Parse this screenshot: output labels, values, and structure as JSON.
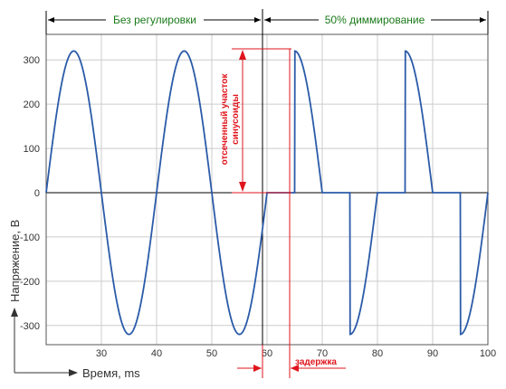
{
  "chart_data": {
    "type": "line",
    "xlabel": "Время, ms",
    "ylabel": "Напряжение, В",
    "xlim": [
      20,
      100
    ],
    "ylim": [
      -340,
      340
    ],
    "x_ticks": [
      30,
      40,
      50,
      60,
      70,
      80,
      90,
      100
    ],
    "y_ticks": [
      300,
      200,
      100,
      0,
      -100,
      -200,
      -300
    ],
    "grid": true,
    "amplitude": 320,
    "frequency_hz": 50,
    "dimming_start": 60,
    "dimming_delay": 5,
    "segments": [
      {
        "label": "Без регулировки",
        "x_range": [
          20,
          60
        ]
      },
      {
        "label": "50% диммирование",
        "x_range": [
          60,
          100
        ]
      }
    ],
    "annotations": {
      "cutoff": "отсеченный участок синусоиды",
      "delay": "задержка"
    },
    "colors": {
      "wave": "#2b5ba8",
      "annotation": "#e0141c",
      "segment_label": "#1a7a1a",
      "grid": "#cccccc"
    }
  }
}
